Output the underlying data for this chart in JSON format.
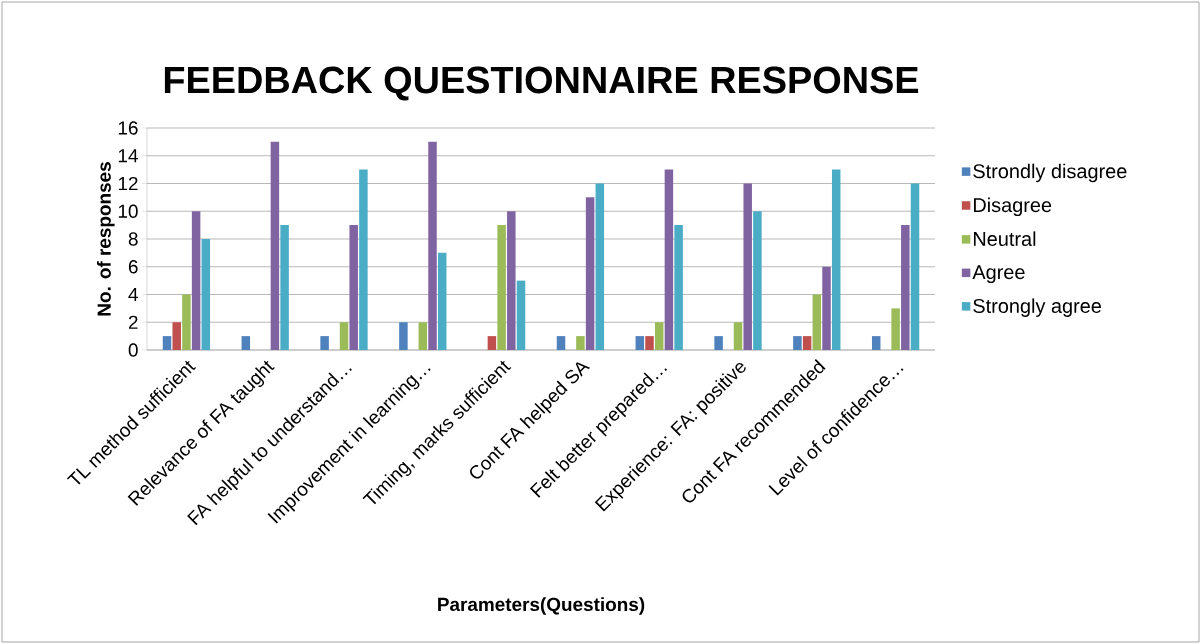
{
  "chart_data": {
    "type": "bar",
    "title": "FEEDBACK QUESTIONNAIRE RESPONSE",
    "xlabel": "Parameters(Questions)",
    "ylabel": "No. of responses",
    "categories": [
      "TL method sufficient",
      "Relevance of FA taught",
      "FA helpful to understand…",
      "Improvement in learning…",
      "Timing, marks sufficient",
      "Cont FA helped SA",
      "Felt better prepared…",
      "Experience: FA: positive",
      "Cont FA recommended",
      "Level of confidence…"
    ],
    "series": [
      {
        "name": "Strondly disagree",
        "color": "#4f81bd",
        "values": [
          1,
          1,
          1,
          2,
          0,
          1,
          1,
          1,
          1,
          1
        ]
      },
      {
        "name": "Disagree",
        "color": "#c0504d",
        "values": [
          2,
          0,
          0,
          0,
          1,
          0,
          1,
          0,
          1,
          0
        ]
      },
      {
        "name": "Neutral",
        "color": "#9bbb59",
        "values": [
          4,
          0,
          2,
          2,
          9,
          1,
          2,
          2,
          4,
          3
        ]
      },
      {
        "name": "Agree",
        "color": "#8064a2",
        "values": [
          10,
          15,
          9,
          15,
          10,
          11,
          13,
          12,
          6,
          9
        ]
      },
      {
        "name": "Strongly agree",
        "color": "#4bacc6",
        "values": [
          8,
          9,
          13,
          7,
          5,
          12,
          9,
          10,
          13,
          12
        ]
      }
    ],
    "ylim": [
      0,
      16
    ],
    "yticks": [
      0,
      2,
      4,
      6,
      8,
      10,
      12,
      14,
      16
    ],
    "grid": "y",
    "legend": "right"
  }
}
